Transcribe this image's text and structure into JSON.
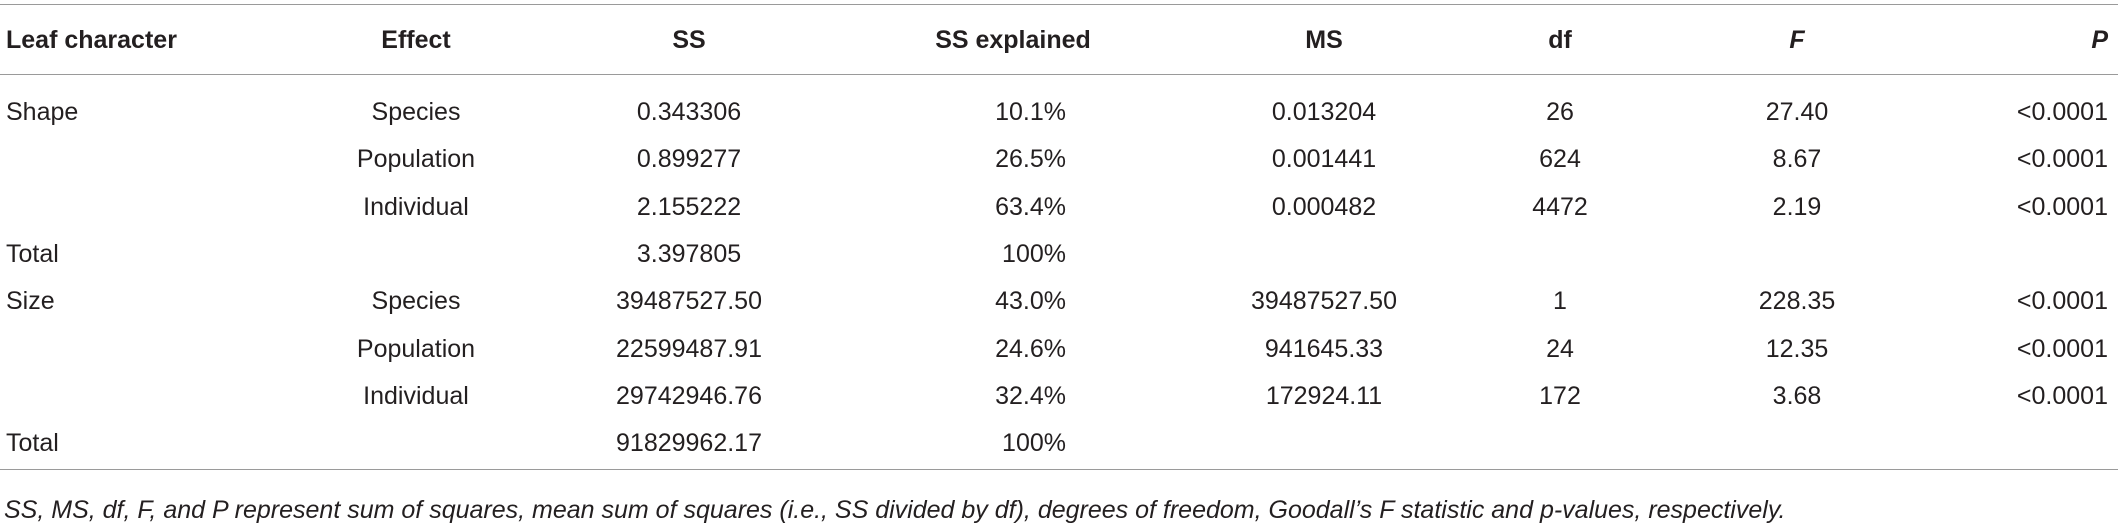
{
  "table": {
    "header": [
      "Leaf character",
      "Effect",
      "SS",
      "SS explained",
      "MS",
      "df",
      "F",
      "P"
    ],
    "rows": [
      [
        "Shape",
        "Species",
        "0.343306",
        "10.1%",
        "0.013204",
        "26",
        "27.40",
        "<0.0001"
      ],
      [
        null,
        "Population",
        "0.899277",
        "26.5%",
        "0.001441",
        "624",
        "8.67",
        "<0.0001"
      ],
      [
        null,
        "Individual",
        "2.155222",
        "63.4%",
        "0.000482",
        "4472",
        "2.19",
        "<0.0001"
      ],
      [
        "Total",
        null,
        "3.397805",
        "100%",
        null,
        null,
        null,
        null
      ],
      [
        "Size",
        "Species",
        "39487527.50",
        "43.0%",
        "39487527.50",
        "1",
        "228.35",
        "<0.0001"
      ],
      [
        null,
        "Population",
        "22599487.91",
        "24.6%",
        "941645.33",
        "24",
        "12.35",
        "<0.0001"
      ],
      [
        null,
        "Individual",
        "29742946.76",
        "32.4%",
        "172924.11",
        "172",
        "3.68",
        "<0.0001"
      ],
      [
        "Total",
        null,
        "91829962.17",
        "100%",
        null,
        null,
        null,
        null
      ]
    ],
    "footnote": "SS, MS, df, F, and P represent sum of squares, mean sum of squares (i.e., SS divided by df), degrees of freedom, Goodall’s F statistic and p-values, respectively."
  }
}
